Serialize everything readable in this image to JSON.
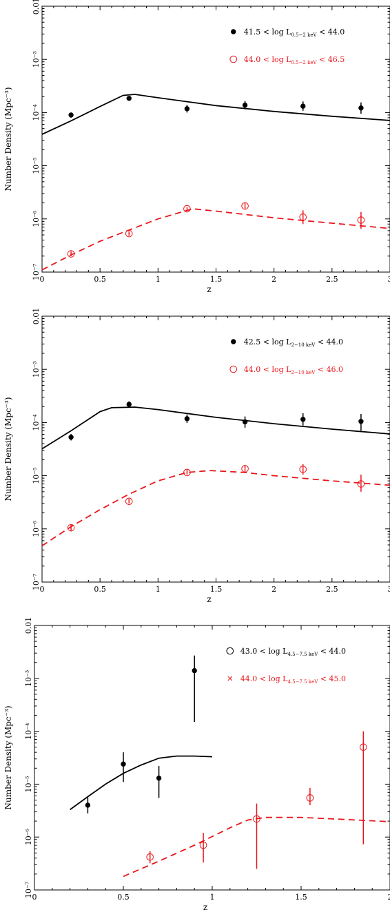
{
  "chart_data": [
    {
      "type": "scatter",
      "xlabel": "z",
      "ylabel": "Number Density (Mpc⁻³)",
      "xlim": [
        0,
        3
      ],
      "ylim": [
        1e-07,
        0.01
      ],
      "yscale": "log",
      "xticks": [
        "0",
        "0.5",
        "1",
        "1.5",
        "2",
        "2.5",
        "3"
      ],
      "yticks": [
        "10⁻⁷",
        "10⁻⁶",
        "10⁻⁵",
        "10⁻⁴",
        "10⁻³",
        "0.01"
      ],
      "legend_position": "top-right",
      "series": [
        {
          "name_prefix": "41.5 < log L",
          "name_sub": "0.5−2 keV",
          "name_suffix": " < 44.0",
          "color": "#000000",
          "marker": "filled-circle",
          "line": "solid",
          "x": [
            0.25,
            0.75,
            1.25,
            1.75,
            2.25,
            2.75
          ],
          "y": [
            9e-05,
            0.000185,
            0.000118,
            0.000138,
            0.000132,
            0.000122
          ],
          "y_err": [
            [
              8e-05,
              0.0001
            ],
            [
              0.00017,
              0.0002
            ],
            [
              0.0001,
              0.00014
            ],
            [
              0.000115,
              0.000165
            ],
            [
              0.000108,
              0.000162
            ],
            [
              9.5e-05,
              0.000155
            ]
          ],
          "model_x": [
            0,
            0.25,
            0.5,
            0.7,
            0.8,
            1.0,
            1.5,
            2.0,
            2.5,
            3.0
          ],
          "model_y": [
            3.9e-05,
            7e-05,
            0.00013,
            0.00021,
            0.00022,
            0.00019,
            0.000135,
            0.000105,
            8.5e-05,
            7.1e-05
          ]
        },
        {
          "name_prefix": "44.0 < log L",
          "name_sub": "0.5−2 keV",
          "name_suffix": " < 46.5",
          "color": "#e8161b",
          "marker": "open-circle",
          "line": "dashed",
          "x": [
            0.25,
            0.75,
            1.25,
            1.75,
            2.25,
            2.75
          ],
          "y": [
            2.2e-07,
            5.3e-07,
            1.55e-06,
            1.75e-06,
            1.08e-06,
            9.5e-07
          ],
          "y_err": [
            [
              2e-07,
              2.45e-07
            ],
            [
              4.8e-07,
              5.9e-07
            ],
            [
              1.45e-06,
              1.68e-06
            ],
            [
              1.55e-06,
              2e-06
            ],
            [
              8e-07,
              1.45e-06
            ],
            [
              6.5e-07,
              1.35e-06
            ]
          ],
          "model_x": [
            0,
            0.25,
            0.5,
            1.0,
            1.3,
            1.5,
            2.0,
            2.5,
            3.0
          ],
          "model_y": [
            1.1e-07,
            2.1e-07,
            3.8e-07,
            1e-06,
            1.55e-06,
            1.4e-06,
            1.05e-06,
            8.3e-07,
            6.6e-07
          ]
        }
      ]
    },
    {
      "type": "scatter",
      "xlabel": "z",
      "ylabel": "Number Density (Mpc⁻³)",
      "xlim": [
        0,
        3
      ],
      "ylim": [
        1e-07,
        0.01
      ],
      "yscale": "log",
      "xticks": [
        "0",
        "0.5",
        "1",
        "1.5",
        "2",
        "2.5",
        "3"
      ],
      "yticks": [
        "10⁻⁷",
        "10⁻⁶",
        "10⁻⁵",
        "10⁻⁴",
        "10⁻³",
        "0.01"
      ],
      "legend_position": "top-right",
      "series": [
        {
          "name_prefix": "42.5 < log L",
          "name_sub": "2−10 keV",
          "name_suffix": " < 44.0",
          "color": "#000000",
          "marker": "filled-circle",
          "line": "solid",
          "x": [
            0.25,
            0.75,
            1.25,
            1.75,
            2.25,
            2.75
          ],
          "y": [
            5.3e-05,
            0.00022,
            0.000118,
            0.000103,
            0.000115,
            0.000105
          ],
          "y_err": [
            [
              4.6e-05,
              6.1e-05
            ],
            [
              0.000195,
              0.00025
            ],
            [
              9.8e-05,
              0.000142
            ],
            [
              8e-05,
              0.00013
            ],
            [
              8.8e-05,
              0.00015
            ],
            [
              7e-05,
              0.000145
            ]
          ],
          "model_x": [
            0,
            0.25,
            0.5,
            0.6,
            0.8,
            1.0,
            1.5,
            2.0,
            2.5,
            3.0
          ],
          "model_y": [
            3.2e-05,
            7e-05,
            0.00016,
            0.00019,
            0.000195,
            0.000175,
            0.000125,
            9.5e-05,
            7.5e-05,
            6.1e-05
          ]
        },
        {
          "name_prefix": "44.0 < log L",
          "name_sub": "2−10 keV",
          "name_suffix": " < 46.0",
          "color": "#e8161b",
          "marker": "open-circle",
          "line": "dashed",
          "x": [
            0.25,
            0.75,
            1.25,
            1.75,
            2.25,
            2.75
          ],
          "y": [
            1.05e-06,
            3.3e-06,
            1.15e-05,
            1.35e-05,
            1.32e-05,
            7e-06
          ],
          "y_err": [
            [
              9.2e-07,
              1.2e-06
            ],
            [
              3e-06,
              3.7e-06
            ],
            [
              1.05e-05,
              1.3e-05
            ],
            [
              1.15e-05,
              1.6e-05
            ],
            [
              1.05e-05,
              1.65e-05
            ],
            [
              5e-06,
              1.05e-05
            ]
          ],
          "model_x": [
            0,
            0.25,
            0.5,
            0.75,
            1.0,
            1.25,
            1.45,
            1.75,
            2.0,
            2.5,
            3.0
          ],
          "model_y": [
            4.8e-07,
            1.1e-06,
            2.3e-06,
            4.5e-06,
            8e-06,
            1.15e-05,
            1.25e-05,
            1.15e-05,
            1e-05,
            8e-06,
            6.6e-06
          ]
        }
      ]
    },
    {
      "type": "scatter",
      "xlabel": "z",
      "ylabel": "Number Density (Mpc⁻³)",
      "xlim": [
        0,
        2
      ],
      "ylim": [
        1e-07,
        0.01
      ],
      "yscale": "log",
      "xticks": [
        "0",
        "0.5",
        "1",
        "1.5",
        "2"
      ],
      "yticks": [
        "10⁻⁷",
        "10⁻⁶",
        "10⁻⁵",
        "10⁻⁴",
        "10⁻³",
        "0.01"
      ],
      "legend_position": "top-right",
      "series": [
        {
          "name_prefix": "43.0 < log L",
          "name_sub": "4.5−7.5 keV",
          "name_suffix": " < 44.0",
          "color": "#000000",
          "marker": "filled-circle",
          "legend_marker": "open-circle",
          "line": "solid",
          "x": [
            0.3,
            0.5,
            0.7,
            0.9
          ],
          "y": [
            4e-06,
            2.4e-05,
            1.3e-05,
            0.0014
          ],
          "y_err": [
            [
              2.8e-06,
              5.6e-06
            ],
            [
              1.1e-05,
              4e-05
            ],
            [
              5.5e-06,
              2.2e-05
            ],
            [
              0.00015,
              0.0027
            ]
          ],
          "model_x": [
            0.2,
            0.3,
            0.4,
            0.5,
            0.6,
            0.7,
            0.8,
            0.9,
            1.0
          ],
          "model_y": [
            3.3e-06,
            5.8e-06,
            1e-05,
            1.6e-05,
            2.3e-05,
            3.1e-05,
            3.4e-05,
            3.4e-05,
            3.3e-05
          ]
        },
        {
          "name_prefix": "44.0 < log L",
          "name_sub": "4.5−7.5 keV",
          "name_suffix": " < 45.0",
          "color": "#e8161b",
          "marker": "open-circle",
          "legend_marker": "cross",
          "line": "dashed",
          "x": [
            0.65,
            0.95,
            1.25,
            1.55,
            1.85
          ],
          "y": [
            4.2e-07,
            7e-07,
            2.2e-06,
            5.5e-06,
            5e-05
          ],
          "y_err": [
            [
              3.2e-07,
              5.4e-07
            ],
            [
              3.3e-07,
              1.2e-06
            ],
            [
              2.5e-07,
              4.3e-06
            ],
            [
              4e-06,
              8.5e-06
            ],
            [
              7.3e-07,
              0.0001
            ]
          ],
          "model_x": [
            0.5,
            0.7,
            0.9,
            1.1,
            1.2,
            1.3,
            1.5,
            1.75,
            2.0
          ],
          "model_y": [
            1.8e-07,
            3.5e-07,
            7e-07,
            1.5e-06,
            2.1e-06,
            2.35e-06,
            2.35e-06,
            2.15e-06,
            1.95e-06
          ]
        }
      ]
    }
  ]
}
